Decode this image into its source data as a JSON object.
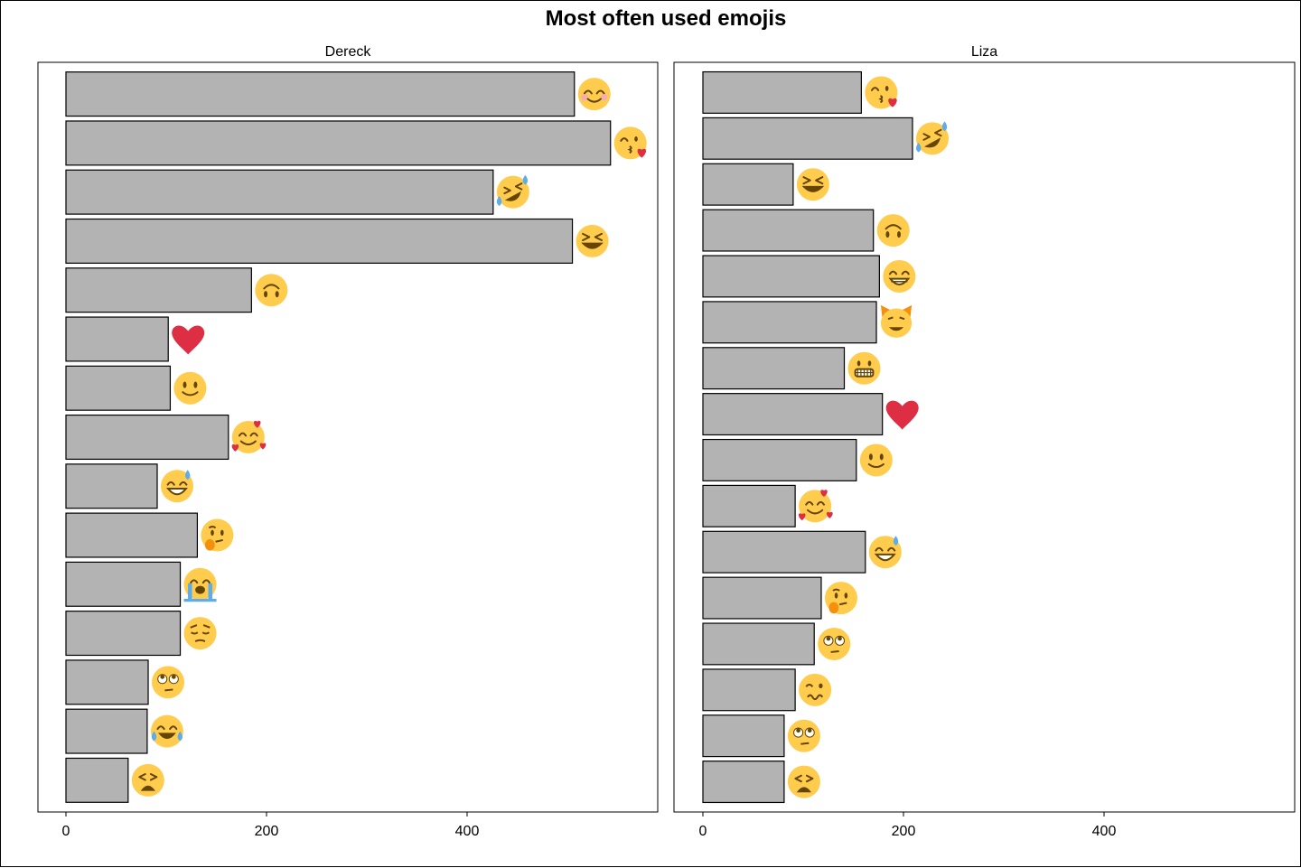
{
  "chart_data": {
    "type": "bar",
    "orientation": "horizontal",
    "title": "Most often used emojis",
    "xlim": [
      0,
      570
    ],
    "x_ticks": [
      0,
      200,
      400
    ],
    "x_tick_labels": [
      "0",
      "200",
      "400"
    ],
    "grid": false,
    "bar_color": "#b3b3b3",
    "panels": [
      {
        "name": "Dereck",
        "categories": [
          "smiling-face-with-smiling-eyes",
          "face-blowing-a-kiss",
          "rolling-on-the-floor-laughing",
          "grinning-squinting-face",
          "upside-down-face",
          "red-heart",
          "slightly-smiling-face",
          "smiling-face-with-hearts",
          "grinning-face-with-sweat",
          "thinking-face",
          "loudly-crying-face",
          "pensive-face",
          "face-with-rolling-eyes",
          "face-with-tears-of-joy",
          "weary-face"
        ],
        "values": [
          507,
          543,
          426,
          505,
          185,
          102,
          104,
          162,
          91,
          131,
          114,
          114,
          82,
          81,
          62
        ]
      },
      {
        "name": "Liza",
        "categories": [
          "face-blowing-a-kiss",
          "rolling-on-the-floor-laughing",
          "grinning-squinting-face",
          "upside-down-face",
          "beaming-face-with-smiling-eyes",
          "grinning-cat",
          "grimacing-face",
          "red-heart",
          "slightly-smiling-face",
          "smiling-face-with-hearts",
          "grinning-face-with-sweat",
          "thinking-face",
          "face-with-rolling-eyes",
          "woozy-face",
          "face-with-rolling-eyes-alt",
          "weary-face"
        ],
        "values": [
          158,
          209,
          90,
          170,
          176,
          173,
          141,
          179,
          153,
          92,
          162,
          118,
          111,
          92,
          81,
          81
        ]
      }
    ]
  }
}
